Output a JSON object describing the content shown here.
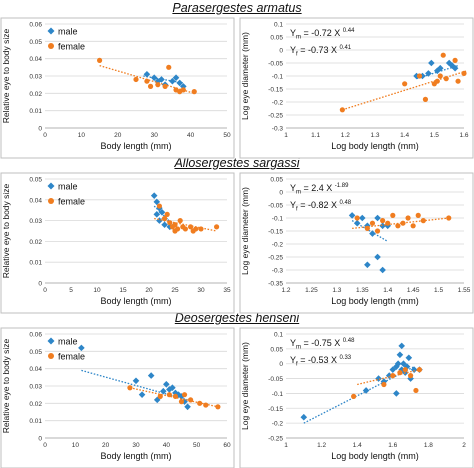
{
  "colors": {
    "male": "#2e86c8",
    "female": "#f07d20",
    "grid": "#d9d9d9",
    "axis": "#b3b3b3",
    "frame": "#bfbfbf"
  },
  "rows": [
    {
      "title": "Parasergestes armatus"
    },
    {
      "title": "Allosergestes sargassi"
    },
    {
      "title": "Deosergestes henseni"
    }
  ],
  "chart_data": [
    {
      "type": "scatter",
      "row": 0,
      "side": "left",
      "xlabel": "Body length (mm)",
      "ylabel": "Relative eye to body size",
      "xlim": [
        0,
        50
      ],
      "xticks": [
        0,
        10,
        20,
        30,
        40,
        50
      ],
      "ylim": [
        0,
        0.06
      ],
      "yticks": [
        0,
        0.01,
        0.02,
        0.03,
        0.04,
        0.05,
        0.06
      ],
      "xtick_labels": [
        "0",
        "10",
        "20",
        "30",
        "40",
        "50"
      ],
      "ytick_labels": [
        "0",
        "0.01",
        "0.02",
        "0.03",
        "0.04",
        "0.05",
        "0.06"
      ],
      "grid": true,
      "legend": "top-left",
      "series": [
        {
          "name": "male",
          "marker": "diamond",
          "points": [
            [
              28,
              0.031
            ],
            [
              30,
              0.029
            ],
            [
              31,
              0.027
            ],
            [
              32,
              0.028
            ],
            [
              33,
              0.025
            ],
            [
              35,
              0.027
            ],
            [
              36,
              0.029
            ],
            [
              37,
              0.026
            ],
            [
              38,
              0.024
            ]
          ],
          "trend": [
            [
              27,
              0.03
            ],
            [
              38,
              0.026
            ]
          ]
        },
        {
          "name": "female",
          "marker": "circle",
          "points": [
            [
              15,
              0.039
            ],
            [
              25,
              0.028
            ],
            [
              28,
              0.027
            ],
            [
              29,
              0.024
            ],
            [
              33,
              0.024
            ],
            [
              34,
              0.035
            ],
            [
              36,
              0.022
            ],
            [
              37,
              0.021
            ],
            [
              38,
              0.022
            ],
            [
              41,
              0.021
            ],
            [
              31,
              0.025
            ]
          ],
          "trend": [
            [
              15,
              0.036
            ],
            [
              41,
              0.02
            ]
          ]
        }
      ]
    },
    {
      "type": "scatter",
      "row": 0,
      "side": "right",
      "xlabel": "Log body length (mm)",
      "ylabel": "Log eye diameter (mm)",
      "xlim": [
        1,
        1.6
      ],
      "xticks": [
        1,
        1.1,
        1.2,
        1.3,
        1.4,
        1.5,
        1.6
      ],
      "ylim": [
        -0.3,
        0.1
      ],
      "yticks": [
        -0.3,
        -0.25,
        -0.2,
        -0.15,
        -0.1,
        -0.05,
        0,
        0.05,
        0.1
      ],
      "xtick_labels": [
        "1",
        "1.1",
        "1.2",
        "1.3",
        "1.4",
        "1.5",
        "1.6"
      ],
      "ytick_labels": [
        "-0.3",
        "-0.25",
        "-0.2",
        "-0.15",
        "-0.1",
        "-0.05",
        "0",
        "0.05",
        "0.1"
      ],
      "grid": true,
      "equations": [
        {
          "sub": "m",
          "coef": "-0.72",
          "exp": "0.44"
        },
        {
          "sub": "f",
          "coef": "-0.73",
          "exp": "0.41"
        }
      ],
      "series": [
        {
          "name": "male",
          "marker": "diamond",
          "points": [
            [
              1.44,
              -0.1
            ],
            [
              1.46,
              -0.1
            ],
            [
              1.48,
              -0.09
            ],
            [
              1.49,
              -0.05
            ],
            [
              1.51,
              -0.08
            ],
            [
              1.52,
              -0.07
            ],
            [
              1.55,
              -0.05
            ],
            [
              1.56,
              -0.06
            ],
            [
              1.57,
              -0.07
            ]
          ],
          "trend": [
            [
              1.44,
              -0.11
            ],
            [
              1.58,
              -0.06
            ]
          ]
        },
        {
          "name": "female",
          "marker": "circle",
          "points": [
            [
              1.19,
              -0.23
            ],
            [
              1.4,
              -0.13
            ],
            [
              1.45,
              -0.1
            ],
            [
              1.47,
              -0.19
            ],
            [
              1.5,
              -0.13
            ],
            [
              1.51,
              -0.12
            ],
            [
              1.53,
              -0.02
            ],
            [
              1.54,
              -0.11
            ],
            [
              1.57,
              -0.04
            ],
            [
              1.58,
              -0.12
            ],
            [
              1.6,
              -0.09
            ],
            [
              1.52,
              -0.1
            ]
          ],
          "trend": [
            [
              1.19,
              -0.23
            ],
            [
              1.61,
              -0.08
            ]
          ]
        }
      ]
    },
    {
      "type": "scatter",
      "row": 1,
      "side": "left",
      "xlabel": "Body length (mm)",
      "ylabel": "Relative eye to body size",
      "xlim": [
        0,
        35
      ],
      "xticks": [
        0,
        5,
        10,
        15,
        20,
        25,
        30,
        35
      ],
      "ylim": [
        0,
        0.05
      ],
      "yticks": [
        0,
        0.01,
        0.02,
        0.03,
        0.04,
        0.05
      ],
      "xtick_labels": [
        "0",
        "5",
        "10",
        "15",
        "20",
        "25",
        "30",
        "35"
      ],
      "ytick_labels": [
        "0",
        "0.01",
        "0.02",
        "0.03",
        "0.04",
        "0.05"
      ],
      "grid": true,
      "legend": "top-left",
      "series": [
        {
          "name": "male",
          "marker": "diamond",
          "points": [
            [
              21,
              0.042
            ],
            [
              21.5,
              0.039
            ],
            [
              22,
              0.036
            ],
            [
              22.5,
              0.034
            ],
            [
              23,
              0.031
            ],
            [
              23,
              0.028
            ],
            [
              24,
              0.027
            ],
            [
              22,
              0.03
            ],
            [
              21.5,
              0.033
            ]
          ],
          "trend": [
            [
              21,
              0.037
            ],
            [
              25,
              0.027
            ]
          ]
        },
        {
          "name": "female",
          "marker": "circle",
          "points": [
            [
              22,
              0.037
            ],
            [
              23,
              0.031
            ],
            [
              24,
              0.029
            ],
            [
              24.5,
              0.027
            ],
            [
              25,
              0.028
            ],
            [
              25.5,
              0.026
            ],
            [
              26,
              0.03
            ],
            [
              26.5,
              0.027
            ],
            [
              27,
              0.026
            ],
            [
              28,
              0.027
            ],
            [
              28.5,
              0.025
            ],
            [
              29,
              0.026
            ],
            [
              30,
              0.026
            ],
            [
              33,
              0.027
            ],
            [
              23.5,
              0.033
            ],
            [
              25,
              0.025
            ]
          ],
          "trend": [
            [
              21,
              0.031
            ],
            [
              33,
              0.025
            ]
          ]
        }
      ]
    },
    {
      "type": "scatter",
      "row": 1,
      "side": "right",
      "xlabel": "Log body length (mm)",
      "ylabel": "Log eye diameter (mm)",
      "xlim": [
        1.2,
        1.55
      ],
      "xticks": [
        1.2,
        1.25,
        1.3,
        1.35,
        1.4,
        1.45,
        1.5,
        1.55
      ],
      "ylim": [
        -0.35,
        0.05
      ],
      "yticks": [
        -0.35,
        -0.3,
        -0.25,
        -0.2,
        -0.15,
        -0.1,
        -0.05,
        0,
        0.05
      ],
      "xtick_labels": [
        "1.2",
        "1.25",
        "1.3",
        "1.35",
        "1.4",
        "1.45",
        "1.5",
        "1.55"
      ],
      "ytick_labels": [
        "-0.35",
        "-0.3",
        "-0.25",
        "-0.2",
        "-0.15",
        "-0.1",
        "-0.05",
        "0",
        "0.05"
      ],
      "grid": true,
      "equations": [
        {
          "sub": "m",
          "coef": "2.4",
          "exp": "-1.89"
        },
        {
          "sub": "f",
          "coef": "-0.82",
          "exp": "0.48"
        }
      ],
      "series": [
        {
          "name": "male",
          "marker": "diamond",
          "points": [
            [
              1.33,
              -0.09
            ],
            [
              1.34,
              -0.12
            ],
            [
              1.35,
              -0.1
            ],
            [
              1.36,
              -0.13
            ],
            [
              1.36,
              -0.28
            ],
            [
              1.37,
              -0.16
            ],
            [
              1.38,
              -0.25
            ],
            [
              1.38,
              -0.1
            ],
            [
              1.39,
              -0.13
            ],
            [
              1.39,
              -0.3
            ],
            [
              1.4,
              -0.13
            ]
          ],
          "trend": [
            [
              1.33,
              -0.11
            ],
            [
              1.4,
              -0.19
            ]
          ]
        },
        {
          "name": "female",
          "marker": "circle",
          "points": [
            [
              1.34,
              -0.1
            ],
            [
              1.36,
              -0.14
            ],
            [
              1.37,
              -0.12
            ],
            [
              1.38,
              -0.15
            ],
            [
              1.39,
              -0.11
            ],
            [
              1.4,
              -0.12
            ],
            [
              1.41,
              -0.09
            ],
            [
              1.42,
              -0.13
            ],
            [
              1.43,
              -0.12
            ],
            [
              1.44,
              -0.1
            ],
            [
              1.45,
              -0.13
            ],
            [
              1.46,
              -0.09
            ],
            [
              1.47,
              -0.11
            ],
            [
              1.52,
              -0.1
            ]
          ],
          "trend": [
            [
              1.33,
              -0.14
            ],
            [
              1.52,
              -0.1
            ]
          ]
        }
      ]
    },
    {
      "type": "scatter",
      "row": 2,
      "side": "left",
      "xlabel": "Body length (mm)",
      "ylabel": "Relative eye to body size",
      "xlim": [
        0,
        60
      ],
      "xticks": [
        0,
        10,
        20,
        30,
        40,
        50,
        60
      ],
      "ylim": [
        0,
        0.06
      ],
      "yticks": [
        0,
        0.01,
        0.02,
        0.03,
        0.04,
        0.05,
        0.06
      ],
      "xtick_labels": [
        "0",
        "10",
        "20",
        "30",
        "40",
        "50",
        "60"
      ],
      "ytick_labels": [
        "0",
        "0.01",
        "0.02",
        "0.03",
        "0.04",
        "0.05",
        "0.06"
      ],
      "grid": true,
      "legend": "top-left",
      "series": [
        {
          "name": "male",
          "marker": "diamond",
          "points": [
            [
              12,
              0.052
            ],
            [
              30,
              0.033
            ],
            [
              35,
              0.036
            ],
            [
              37,
              0.022
            ],
            [
              40,
              0.031
            ],
            [
              41,
              0.028
            ],
            [
              42,
              0.029
            ],
            [
              43,
              0.026
            ],
            [
              44,
              0.025
            ],
            [
              45,
              0.024
            ],
            [
              46,
              0.021
            ],
            [
              47,
              0.018
            ],
            [
              32,
              0.025
            ],
            [
              39,
              0.027
            ]
          ],
          "trend": [
            [
              12,
              0.039
            ],
            [
              47,
              0.022
            ]
          ]
        },
        {
          "name": "female",
          "marker": "circle",
          "points": [
            [
              28,
              0.029
            ],
            [
              38,
              0.024
            ],
            [
              41,
              0.025
            ],
            [
              43,
              0.024
            ],
            [
              45,
              0.021
            ],
            [
              48,
              0.022
            ],
            [
              51,
              0.02
            ],
            [
              53,
              0.019
            ],
            [
              57,
              0.018
            ],
            [
              46,
              0.025
            ]
          ],
          "trend": [
            [
              28,
              0.029
            ],
            [
              57,
              0.018
            ]
          ]
        }
      ]
    },
    {
      "type": "scatter",
      "row": 2,
      "side": "right",
      "xlabel": "Log body length (mm)",
      "ylabel": "Log eye diameter (mm)",
      "xlim": [
        1,
        2
      ],
      "xticks": [
        1,
        1.2,
        1.4,
        1.6,
        1.8,
        2
      ],
      "ylim": [
        -0.25,
        0.1
      ],
      "yticks": [
        -0.25,
        -0.2,
        -0.15,
        -0.1,
        -0.05,
        0,
        0.05,
        0.1
      ],
      "xtick_labels": [
        "1",
        "1.2",
        "1.4",
        "1.6",
        "1.8",
        "2"
      ],
      "ytick_labels": [
        "-0.25",
        "-0.2",
        "-0.15",
        "-0.1",
        "-0.05",
        "0",
        "0.05",
        "0.1"
      ],
      "grid": true,
      "equations": [
        {
          "sub": "m",
          "coef": "-0.75",
          "exp": "0.48"
        },
        {
          "sub": "f",
          "coef": "-0.53",
          "exp": "0.33"
        }
      ],
      "series": [
        {
          "name": "male",
          "marker": "diamond",
          "points": [
            [
              1.1,
              -0.18
            ],
            [
              1.45,
              -0.09
            ],
            [
              1.52,
              -0.05
            ],
            [
              1.55,
              -0.06
            ],
            [
              1.58,
              -0.04
            ],
            [
              1.6,
              -0.02
            ],
            [
              1.62,
              -0.01
            ],
            [
              1.63,
              0.0
            ],
            [
              1.64,
              0.03
            ],
            [
              1.65,
              -0.02
            ],
            [
              1.66,
              0.0
            ],
            [
              1.67,
              -0.03
            ],
            [
              1.68,
              -0.01
            ],
            [
              1.69,
              0.02
            ],
            [
              1.7,
              -0.05
            ],
            [
              1.72,
              -0.02
            ],
            [
              1.75,
              -0.02
            ],
            [
              1.62,
              -0.1
            ],
            [
              1.65,
              0.06
            ]
          ],
          "trend": [
            [
              1.1,
              -0.2
            ],
            [
              1.72,
              -0.01
            ]
          ]
        },
        {
          "name": "female",
          "marker": "circle",
          "points": [
            [
              1.38,
              -0.11
            ],
            [
              1.55,
              -0.07
            ],
            [
              1.6,
              -0.04
            ],
            [
              1.64,
              -0.03
            ],
            [
              1.67,
              -0.02
            ],
            [
              1.7,
              -0.04
            ],
            [
              1.73,
              -0.09
            ],
            [
              1.75,
              -0.02
            ]
          ],
          "trend": [
            [
              1.4,
              -0.07
            ],
            [
              1.75,
              -0.02
            ]
          ]
        }
      ]
    }
  ]
}
